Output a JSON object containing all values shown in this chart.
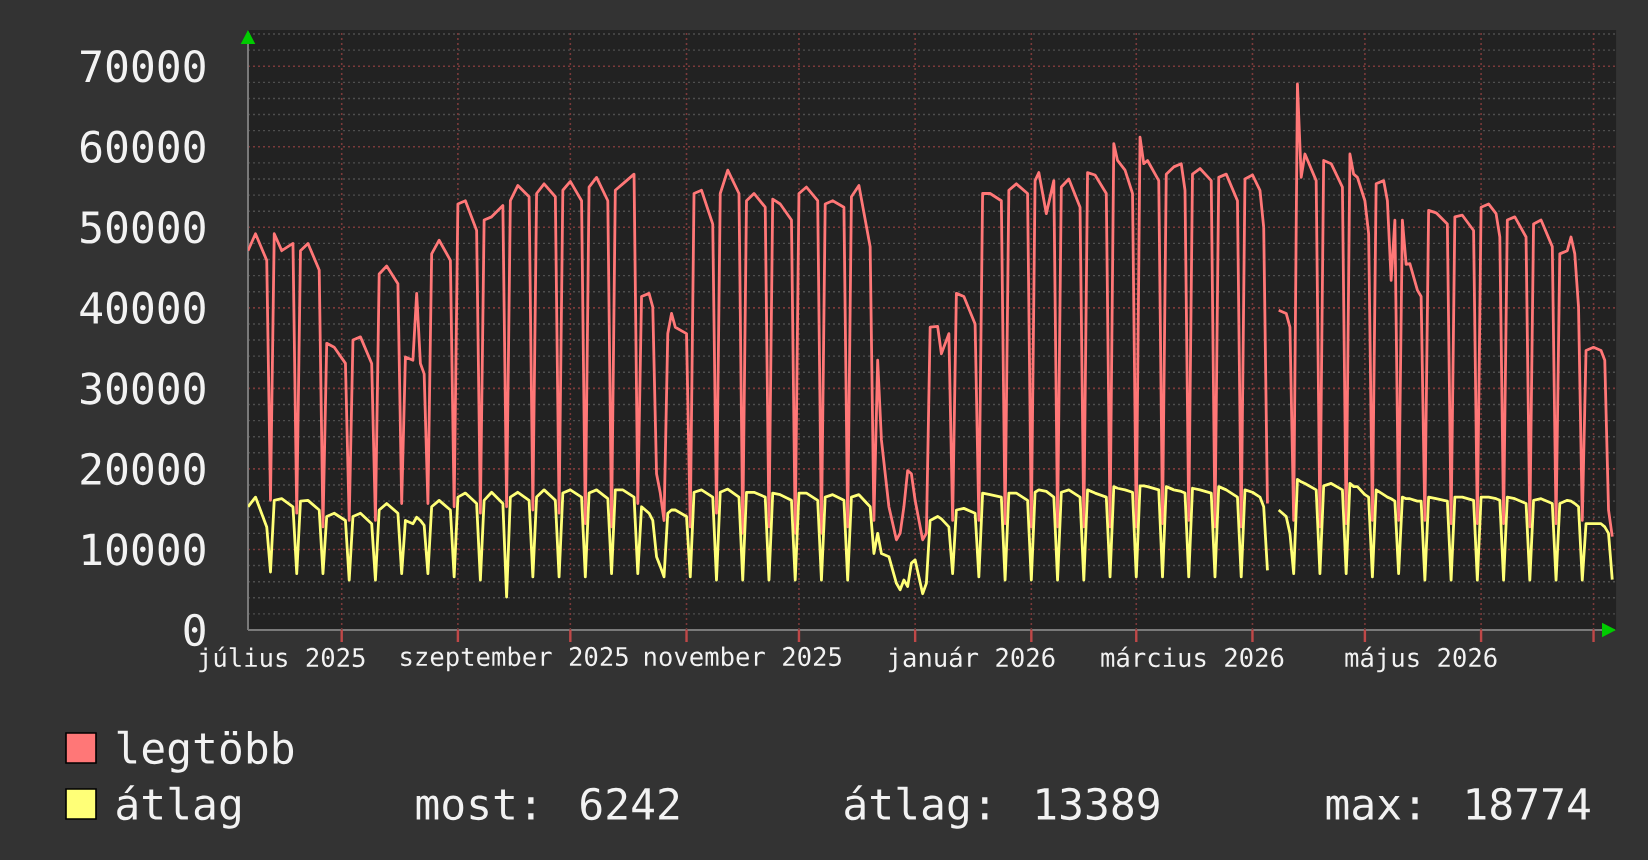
{
  "chart_data": {
    "type": "line",
    "x": [
      "2025-07-07",
      "2025-07-09",
      "2025-07-12",
      "2025-07-13",
      "2025-07-14",
      "2025-07-16",
      "2025-07-19",
      "2025-07-20",
      "2025-07-21",
      "2025-07-23",
      "2025-07-26",
      "2025-07-27",
      "2025-07-28",
      "2025-07-30",
      "2025-08-02",
      "2025-08-03",
      "2025-08-04",
      "2025-08-06",
      "2025-08-09",
      "2025-08-10",
      "2025-08-11",
      "2025-08-13",
      "2025-08-16",
      "2025-08-17",
      "2025-08-18",
      "2025-08-20",
      "2025-08-21",
      "2025-08-22",
      "2025-08-23",
      "2025-08-24",
      "2025-08-25",
      "2025-08-27",
      "2025-08-30",
      "2025-08-31",
      "2025-09-01",
      "2025-09-03",
      "2025-09-06",
      "2025-09-07",
      "2025-09-08",
      "2025-09-10",
      "2025-09-13",
      "2025-09-14",
      "2025-09-15",
      "2025-09-17",
      "2025-09-20",
      "2025-09-21",
      "2025-09-22",
      "2025-09-24",
      "2025-09-27",
      "2025-09-28",
      "2025-09-29",
      "2025-10-01",
      "2025-10-04",
      "2025-10-05",
      "2025-10-06",
      "2025-10-08",
      "2025-10-11",
      "2025-10-12",
      "2025-10-13",
      "2025-10-15",
      "2025-10-18",
      "2025-10-19",
      "2025-10-20",
      "2025-10-22",
      "2025-10-23",
      "2025-10-24",
      "2025-10-25",
      "2025-10-26",
      "2025-10-27",
      "2025-10-28",
      "2025-10-29",
      "2025-11-01",
      "2025-11-02",
      "2025-11-03",
      "2025-11-05",
      "2025-11-08",
      "2025-11-09",
      "2025-11-10",
      "2025-11-12",
      "2025-11-15",
      "2025-11-16",
      "2025-11-17",
      "2025-11-19",
      "2025-11-22",
      "2025-11-23",
      "2025-11-24",
      "2025-11-26",
      "2025-11-29",
      "2025-11-30",
      "2025-12-01",
      "2025-12-03",
      "2025-12-06",
      "2025-12-07",
      "2025-12-08",
      "2025-12-10",
      "2025-12-13",
      "2025-12-14",
      "2025-12-15",
      "2025-12-17",
      "2025-12-20",
      "2025-12-21",
      "2025-12-22",
      "2025-12-23",
      "2025-12-25",
      "2025-12-27",
      "2025-12-28",
      "2025-12-29",
      "2025-12-30",
      "2025-12-31",
      "2026-01-01",
      "2026-01-03",
      "2026-01-04",
      "2026-01-05",
      "2026-01-07",
      "2026-01-08",
      "2026-01-10",
      "2026-01-11",
      "2026-01-12",
      "2026-01-14",
      "2026-01-17",
      "2026-01-18",
      "2026-01-19",
      "2026-01-21",
      "2026-01-24",
      "2026-01-25",
      "2026-01-26",
      "2026-01-28",
      "2026-01-31",
      "2026-02-01",
      "2026-02-02",
      "2026-02-03",
      "2026-02-05",
      "2026-02-07",
      "2026-02-08",
      "2026-02-09",
      "2026-02-11",
      "2026-02-14",
      "2026-02-15",
      "2026-02-16",
      "2026-02-18",
      "2026-02-21",
      "2026-02-22",
      "2026-02-23",
      "2026-02-24",
      "2026-02-26",
      "2026-02-28",
      "2026-03-01",
      "2026-03-02",
      "2026-03-03",
      "2026-03-04",
      "2026-03-07",
      "2026-03-08",
      "2026-03-09",
      "2026-03-11",
      "2026-03-13",
      "2026-03-14",
      "2026-03-15",
      "2026-03-16",
      "2026-03-18",
      "2026-03-21",
      "2026-03-22",
      "2026-03-23",
      "2026-03-25",
      "2026-03-28",
      "2026-03-29",
      "2026-03-30",
      "2026-04-01",
      "2026-04-03",
      "2026-04-04",
      "2026-04-05",
      "2026-04-06",
      "2026-04-08",
      "2026-04-10",
      "2026-04-11",
      "2026-04-12",
      "2026-04-13",
      "2026-04-14",
      "2026-04-15",
      "2026-04-18",
      "2026-04-19",
      "2026-04-20",
      "2026-04-22",
      "2026-04-25",
      "2026-04-26",
      "2026-04-27",
      "2026-04-28",
      "2026-04-29",
      "2026-05-01",
      "2026-05-02",
      "2026-05-03",
      "2026-05-04",
      "2026-05-06",
      "2026-05-07",
      "2026-05-08",
      "2026-05-09",
      "2026-05-10",
      "2026-05-11",
      "2026-05-12",
      "2026-05-13",
      "2026-05-15",
      "2026-05-16",
      "2026-05-17",
      "2026-05-18",
      "2026-05-20",
      "2026-05-23",
      "2026-05-24",
      "2026-05-25",
      "2026-05-27",
      "2026-05-30",
      "2026-05-31",
      "2026-06-01",
      "2026-06-03",
      "2026-06-05",
      "2026-06-06",
      "2026-06-07",
      "2026-06-08",
      "2026-06-10",
      "2026-06-13",
      "2026-06-14",
      "2026-06-15",
      "2026-06-17",
      "2026-06-20",
      "2026-06-21",
      "2026-06-22",
      "2026-06-24",
      "2026-06-25",
      "2026-06-26",
      "2026-06-27",
      "2026-06-28",
      "2026-06-29",
      "2026-07-01",
      "2026-07-03",
      "2026-07-04",
      "2026-07-05",
      "2026-07-06"
    ],
    "series": [
      {
        "name": "legtöbb",
        "color": "#ff7777",
        "values": [
          47100,
          49200,
          45900,
          16100,
          49200,
          47100,
          48000,
          14500,
          47100,
          48000,
          44700,
          12800,
          35600,
          35100,
          33100,
          13600,
          36000,
          36400,
          33100,
          13600,
          44200,
          45200,
          43000,
          15700,
          33900,
          33500,
          41800,
          33100,
          31800,
          15700,
          46700,
          48400,
          45900,
          15300,
          52900,
          53300,
          49600,
          14500,
          50900,
          51300,
          52700,
          15300,
          53300,
          55200,
          53800,
          14900,
          54200,
          55400,
          53800,
          14500,
          54600,
          55700,
          53300,
          13200,
          55000,
          56200,
          53300,
          12800,
          54600,
          55400,
          56600,
          15700,
          41400,
          41800,
          40100,
          19400,
          17000,
          13600,
          36800,
          39300,
          37600,
          36800,
          12800,
          54200,
          54600,
          50400,
          14500,
          54200,
          57100,
          54200,
          12000,
          53300,
          54200,
          52500,
          12800,
          53500,
          52900,
          50900,
          12000,
          54200,
          55000,
          53300,
          12000,
          52900,
          53300,
          52500,
          12800,
          53800,
          55200,
          47600,
          13600,
          33500,
          23600,
          15300,
          11200,
          12000,
          15300,
          19800,
          19400,
          16100,
          11200,
          12000,
          37600,
          37700,
          34300,
          36800,
          13600,
          41800,
          41400,
          38000,
          13600,
          54200,
          54200,
          53300,
          13200,
          54600,
          55400,
          54200,
          12800,
          55800,
          56800,
          51700,
          55800,
          12800,
          55000,
          56000,
          52500,
          12800,
          56800,
          56500,
          54200,
          12800,
          60400,
          58300,
          57100,
          54200,
          12800,
          61200,
          57900,
          58300,
          55800,
          13200,
          56600,
          57500,
          57900,
          54600,
          13600,
          56600,
          57300,
          55800,
          12800,
          56200,
          56600,
          53300,
          12800,
          56000,
          56500,
          54600,
          50000,
          15700,
          null,
          39700,
          39300,
          37600,
          13600,
          67800,
          56200,
          59100,
          55800,
          12800,
          58300,
          57900,
          55000,
          13200,
          59100,
          56600,
          56200,
          53300,
          49200,
          13600,
          55400,
          55800,
          53300,
          43400,
          50900,
          13600,
          50900,
          45400,
          45500,
          42200,
          41400,
          13600,
          52100,
          51800,
          50400,
          13200,
          51300,
          51500,
          49600,
          13200,
          52500,
          52900,
          51700,
          48800,
          13200,
          50900,
          51300,
          48800,
          12800,
          50400,
          50900,
          47600,
          13200,
          46700,
          47100,
          48800,
          46700,
          40100,
          13600,
          34700,
          35100,
          34700,
          33500,
          14900,
          11600
        ]
      },
      {
        "name": "átlag",
        "color": "#ffff77",
        "values": [
          15300,
          16500,
          12800,
          7200,
          16100,
          16300,
          15300,
          7000,
          16000,
          16100,
          14900,
          7000,
          14100,
          14500,
          13600,
          6200,
          14100,
          14500,
          13200,
          6200,
          14900,
          15700,
          14500,
          7000,
          13600,
          13200,
          14000,
          13600,
          13000,
          7000,
          15300,
          16100,
          14900,
          6600,
          16500,
          17000,
          15700,
          6200,
          16100,
          17100,
          15700,
          4100,
          16500,
          17100,
          16100,
          6600,
          16500,
          17400,
          16100,
          6600,
          17000,
          17400,
          16500,
          6600,
          17000,
          17400,
          16300,
          7000,
          17400,
          17400,
          16500,
          7000,
          15300,
          14500,
          13600,
          9100,
          7900,
          6600,
          14500,
          14900,
          14900,
          14100,
          6600,
          17100,
          17400,
          16500,
          6200,
          17100,
          17500,
          16500,
          6200,
          17100,
          17100,
          16500,
          6200,
          17000,
          16800,
          16100,
          6200,
          17000,
          17000,
          16100,
          6200,
          16500,
          16800,
          16100,
          6200,
          16500,
          16800,
          15300,
          9500,
          12000,
          9500,
          9100,
          5800,
          5000,
          6200,
          5400,
          8300,
          8700,
          4500,
          5800,
          13600,
          14100,
          13800,
          12800,
          7000,
          14900,
          15100,
          14500,
          6600,
          17000,
          16800,
          16500,
          6200,
          17000,
          17000,
          16100,
          6200,
          17100,
          17400,
          17200,
          16500,
          6200,
          17100,
          17400,
          16500,
          6200,
          17400,
          17000,
          16500,
          6600,
          17800,
          17600,
          17400,
          17100,
          6600,
          17900,
          17900,
          17800,
          17400,
          6600,
          17800,
          17400,
          17200,
          17000,
          6600,
          17600,
          17400,
          17000,
          6600,
          17800,
          17400,
          16500,
          6600,
          17400,
          17100,
          16500,
          15300,
          7400,
          null,
          14900,
          14100,
          12000,
          7000,
          18700,
          18400,
          18200,
          17400,
          7000,
          17900,
          18200,
          17400,
          7000,
          18200,
          17800,
          17800,
          16800,
          16500,
          6600,
          17400,
          16800,
          16500,
          16300,
          16000,
          7000,
          16500,
          16300,
          16300,
          16000,
          16000,
          6200,
          16500,
          16300,
          16000,
          6200,
          16500,
          16500,
          16100,
          6200,
          16500,
          16500,
          16300,
          16100,
          6200,
          16500,
          16300,
          15700,
          6200,
          16100,
          16300,
          15700,
          6200,
          15700,
          16100,
          16000,
          15700,
          15300,
          6200,
          13200,
          13200,
          13200,
          12800,
          12000,
          6242
        ]
      }
    ],
    "xlim": [
      "2025-07-07",
      "2026-07-07"
    ],
    "xticks": [
      {
        "value": "2025-07-16",
        "label": "július 2025"
      },
      {
        "value": "2025-08-01",
        "label": null
      },
      {
        "value": "2025-09-01",
        "label": null
      },
      {
        "value": "2025-09-16",
        "label": "szeptember 2025"
      },
      {
        "value": "2025-10-01",
        "label": null
      },
      {
        "value": "2025-11-01",
        "label": null
      },
      {
        "value": "2025-11-16",
        "label": "november 2025"
      },
      {
        "value": "2025-12-01",
        "label": null
      },
      {
        "value": "2026-01-01",
        "label": null
      },
      {
        "value": "2026-01-16",
        "label": "január 2026"
      },
      {
        "value": "2026-02-01",
        "label": null
      },
      {
        "value": "2026-03-01",
        "label": null
      },
      {
        "value": "2026-03-16",
        "label": "március 2026"
      },
      {
        "value": "2026-04-01",
        "label": null
      },
      {
        "value": "2026-05-01",
        "label": null
      },
      {
        "value": "2026-05-16",
        "label": "május 2026"
      },
      {
        "value": "2026-06-01",
        "label": null
      },
      {
        "value": "2026-07-01",
        "label": null
      }
    ],
    "ylim": [
      0,
      74500
    ],
    "yticks": [
      0,
      10000,
      20000,
      30000,
      40000,
      50000,
      60000,
      70000
    ],
    "grid": true,
    "legend": "bottom left",
    "annotations": [
      "most: 6242",
      "átlag: 13389",
      "max: 18774"
    ]
  }
}
